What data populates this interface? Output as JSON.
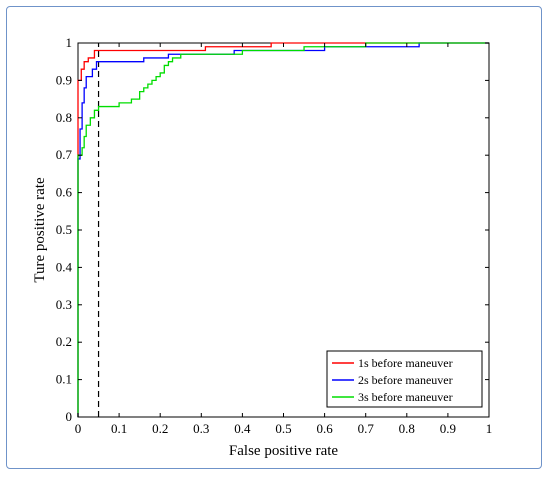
{
  "chart_data": {
    "type": "line",
    "title": "",
    "xlabel": "False positive rate",
    "ylabel": "Ture positive rate",
    "xlim": [
      0,
      1
    ],
    "ylim": [
      0,
      1
    ],
    "x_ticks": [
      "0",
      "0.1",
      "0.2",
      "0.3",
      "0.4",
      "0.5",
      "0.6",
      "0.7",
      "0.8",
      "0.9",
      "1"
    ],
    "y_ticks": [
      "0",
      "0.1",
      "0.2",
      "0.3",
      "0.4",
      "0.5",
      "0.6",
      "0.7",
      "0.8",
      "0.9",
      "1"
    ],
    "x_tick_values": [
      0,
      0.1,
      0.2,
      0.3,
      0.4,
      0.5,
      0.6,
      0.7,
      0.8,
      0.9,
      1
    ],
    "y_tick_values": [
      0,
      0.1,
      0.2,
      0.3,
      0.4,
      0.5,
      0.6,
      0.7,
      0.8,
      0.9,
      1
    ],
    "grid": false,
    "legend_position": "bottom-right",
    "reference_line": {
      "style": "dashed",
      "x": 0.05,
      "color": "#000000"
    },
    "series": [
      {
        "name": "1s before maneuver",
        "color": "#ff0000",
        "points": [
          [
            0,
            0
          ],
          [
            0,
            0.9
          ],
          [
            0.008,
            0.9
          ],
          [
            0.008,
            0.93
          ],
          [
            0.015,
            0.93
          ],
          [
            0.015,
            0.95
          ],
          [
            0.025,
            0.95
          ],
          [
            0.025,
            0.96
          ],
          [
            0.04,
            0.96
          ],
          [
            0.04,
            0.98
          ],
          [
            0.31,
            0.98
          ],
          [
            0.31,
            0.99
          ],
          [
            0.47,
            0.99
          ],
          [
            0.47,
            1.0
          ],
          [
            1,
            1
          ]
        ]
      },
      {
        "name": "2s before maneuver",
        "color": "#0000ff",
        "points": [
          [
            0,
            0
          ],
          [
            0,
            0.69
          ],
          [
            0.005,
            0.69
          ],
          [
            0.005,
            0.77
          ],
          [
            0.01,
            0.77
          ],
          [
            0.01,
            0.84
          ],
          [
            0.015,
            0.84
          ],
          [
            0.015,
            0.88
          ],
          [
            0.02,
            0.88
          ],
          [
            0.02,
            0.91
          ],
          [
            0.035,
            0.91
          ],
          [
            0.035,
            0.93
          ],
          [
            0.045,
            0.93
          ],
          [
            0.045,
            0.95
          ],
          [
            0.16,
            0.95
          ],
          [
            0.16,
            0.96
          ],
          [
            0.22,
            0.96
          ],
          [
            0.22,
            0.97
          ],
          [
            0.38,
            0.97
          ],
          [
            0.38,
            0.98
          ],
          [
            0.6,
            0.98
          ],
          [
            0.6,
            0.99
          ],
          [
            0.83,
            0.99
          ],
          [
            0.83,
            1.0
          ],
          [
            1,
            1
          ]
        ]
      },
      {
        "name": "3s before maneuver",
        "color": "#00dd00",
        "points": [
          [
            0,
            0
          ],
          [
            0,
            0.7
          ],
          [
            0.01,
            0.7
          ],
          [
            0.01,
            0.72
          ],
          [
            0.015,
            0.72
          ],
          [
            0.015,
            0.75
          ],
          [
            0.02,
            0.75
          ],
          [
            0.02,
            0.78
          ],
          [
            0.03,
            0.78
          ],
          [
            0.03,
            0.8
          ],
          [
            0.04,
            0.8
          ],
          [
            0.04,
            0.82
          ],
          [
            0.05,
            0.82
          ],
          [
            0.05,
            0.83
          ],
          [
            0.1,
            0.83
          ],
          [
            0.1,
            0.84
          ],
          [
            0.13,
            0.84
          ],
          [
            0.13,
            0.85
          ],
          [
            0.15,
            0.85
          ],
          [
            0.15,
            0.87
          ],
          [
            0.16,
            0.87
          ],
          [
            0.16,
            0.88
          ],
          [
            0.17,
            0.88
          ],
          [
            0.17,
            0.89
          ],
          [
            0.18,
            0.89
          ],
          [
            0.18,
            0.9
          ],
          [
            0.19,
            0.9
          ],
          [
            0.19,
            0.91
          ],
          [
            0.2,
            0.91
          ],
          [
            0.2,
            0.92
          ],
          [
            0.21,
            0.92
          ],
          [
            0.21,
            0.94
          ],
          [
            0.22,
            0.94
          ],
          [
            0.22,
            0.95
          ],
          [
            0.23,
            0.95
          ],
          [
            0.23,
            0.96
          ],
          [
            0.25,
            0.96
          ],
          [
            0.25,
            0.97
          ],
          [
            0.4,
            0.97
          ],
          [
            0.4,
            0.98
          ],
          [
            0.55,
            0.98
          ],
          [
            0.55,
            0.99
          ],
          [
            0.7,
            0.99
          ],
          [
            0.7,
            1.0
          ],
          [
            1,
            1
          ]
        ]
      }
    ]
  }
}
